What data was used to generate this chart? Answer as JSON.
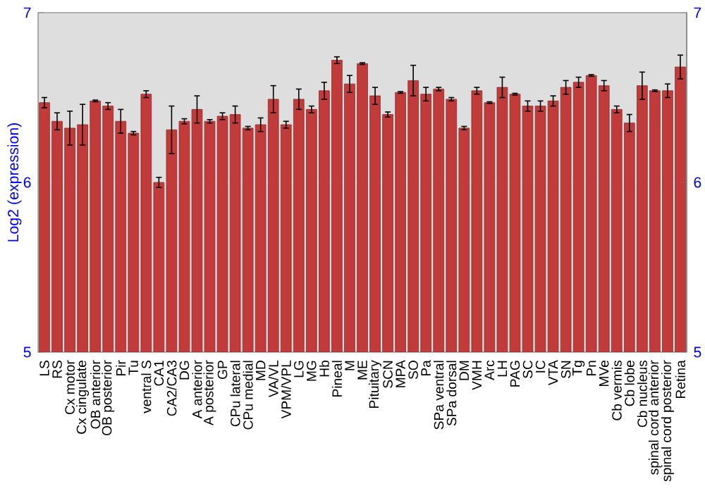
{
  "chart_data": {
    "type": "bar",
    "ylabel": "Log2 (expression)",
    "categories": [
      "LS",
      "RS",
      "Cx motor",
      "Cx cingulate",
      "OB anterior",
      "OB posterior",
      "Pir",
      "Tu",
      "ventral S",
      "CA1",
      "CA2/CA3",
      "DG",
      "A anterior",
      "A posterior",
      "GP",
      "CPu lateral",
      "CPu medial",
      "MD",
      "VA/VL",
      "VPM/VPL",
      "LG",
      "MG",
      "Hb",
      "Pineal",
      "M",
      "ME",
      "Pituitary",
      "SCN",
      "MPA",
      "SO",
      "Pa",
      "SPa ventral",
      "SPa dorsal",
      "DM",
      "VMH",
      "Arc",
      "LH",
      "PAG",
      "SC",
      "IC",
      "VTA",
      "SN",
      "Tg",
      "Pn",
      "MVe",
      "Cb vermis",
      "Cb lobe",
      "Cb nucleus",
      "spinal cord anterior",
      "spinal cord posterior",
      "Retina"
    ],
    "values": [
      6.47,
      6.36,
      6.32,
      6.34,
      6.48,
      6.45,
      6.36,
      6.29,
      6.52,
      6.0,
      6.31,
      6.36,
      6.43,
      6.36,
      6.39,
      6.4,
      6.32,
      6.34,
      6.49,
      6.34,
      6.49,
      6.43,
      6.54,
      6.72,
      6.58,
      6.7,
      6.51,
      6.4,
      6.53,
      6.6,
      6.52,
      6.55,
      6.49,
      6.32,
      6.54,
      6.47,
      6.56,
      6.52,
      6.45,
      6.45,
      6.48,
      6.56,
      6.59,
      6.63,
      6.57,
      6.43,
      6.35,
      6.57,
      6.54,
      6.54,
      6.68
    ],
    "errors": [
      0.03,
      0.05,
      0.1,
      0.12,
      0.005,
      0.02,
      0.07,
      0.01,
      0.02,
      0.03,
      0.14,
      0.015,
      0.08,
      0.01,
      0.02,
      0.05,
      0.01,
      0.04,
      0.08,
      0.02,
      0.06,
      0.02,
      0.05,
      0.02,
      0.05,
      0.005,
      0.05,
      0.015,
      0.005,
      0.09,
      0.04,
      0.01,
      0.01,
      0.01,
      0.02,
      0.005,
      0.06,
      0.005,
      0.03,
      0.03,
      0.03,
      0.04,
      0.03,
      0.005,
      0.03,
      0.02,
      0.05,
      0.08,
      0.005,
      0.04,
      0.07
    ],
    "color": "#c23b3b",
    "ylim": [
      5,
      7
    ],
    "yticks": [
      5,
      6,
      7
    ],
    "y2lim": [
      5,
      7
    ],
    "y2ticks": [
      5,
      6,
      7
    ],
    "grid": "y"
  }
}
